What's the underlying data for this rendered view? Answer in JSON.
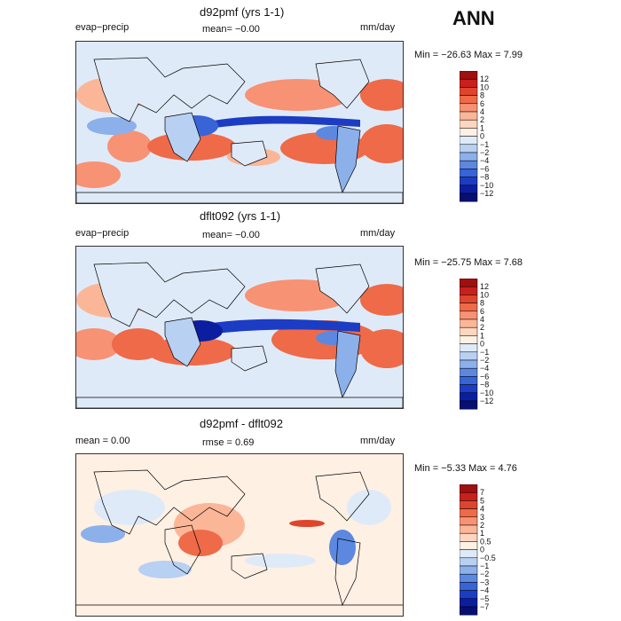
{
  "season": "ANN",
  "chart_data": [
    {
      "type": "heatmap",
      "title": "d92pmf (yrs 1-1)",
      "variable": "evap−precip",
      "mean_text": "mean=   −0.00",
      "units": "mm/day",
      "minmax_text": "Min = −26.63  Max =    7.99",
      "min": -26.63,
      "max": 7.99,
      "colorbar_levels": [
        "12",
        "10",
        "8",
        "6",
        "4",
        "2",
        "1",
        "0",
        "−1",
        "−2",
        "−4",
        "−6",
        "−8",
        "−10",
        "−12"
      ],
      "colors": [
        "#a01010",
        "#c8201c",
        "#e0442c",
        "#ef6a48",
        "#f79274",
        "#fbb698",
        "#fdd6c0",
        "#fff0e4",
        "#dfeaf8",
        "#b8d0f2",
        "#8cb0ea",
        "#5c88e0",
        "#3864d8",
        "#1c3cc4",
        "#0c1ea0",
        "#061070"
      ],
      "ylim": [
        -12,
        12
      ]
    },
    {
      "type": "heatmap",
      "title": "dflt092 (yrs 1-1)",
      "variable": "evap−precip",
      "mean_text": "mean=   −0.00",
      "units": "mm/day",
      "minmax_text": "Min = −25.75  Max =    7.68",
      "min": -25.75,
      "max": 7.68,
      "colorbar_levels": [
        "12",
        "10",
        "8",
        "6",
        "4",
        "2",
        "1",
        "0",
        "−1",
        "−2",
        "−4",
        "−6",
        "−8",
        "−10",
        "−12"
      ],
      "colors": [
        "#a01010",
        "#c8201c",
        "#e0442c",
        "#ef6a48",
        "#f79274",
        "#fbb698",
        "#fdd6c0",
        "#fff0e4",
        "#dfeaf8",
        "#b8d0f2",
        "#8cb0ea",
        "#5c88e0",
        "#3864d8",
        "#1c3cc4",
        "#0c1ea0",
        "#061070"
      ],
      "ylim": [
        -12,
        12
      ]
    },
    {
      "type": "heatmap",
      "title": "d92pmf - dflt092",
      "mean_text": "mean =     0.00",
      "rmse_text": "rmse =    0.69",
      "units": "mm/day",
      "minmax_text": "Min =  −5.33  Max =    4.76",
      "min": -5.33,
      "max": 4.76,
      "colorbar_levels": [
        "7",
        "5",
        "4",
        "3",
        "2",
        "1",
        "0.5",
        "0",
        "−0.5",
        "−1",
        "−2",
        "−3",
        "−4",
        "−5",
        "−7"
      ],
      "colors": [
        "#a01010",
        "#c8201c",
        "#e0442c",
        "#ef6a48",
        "#f79274",
        "#fbb698",
        "#fdd6c0",
        "#fff0e4",
        "#dfeaf8",
        "#b8d0f2",
        "#8cb0ea",
        "#5c88e0",
        "#3864d8",
        "#1c3cc4",
        "#0c1ea0",
        "#061070"
      ],
      "ylim": [
        -7,
        7
      ]
    }
  ]
}
